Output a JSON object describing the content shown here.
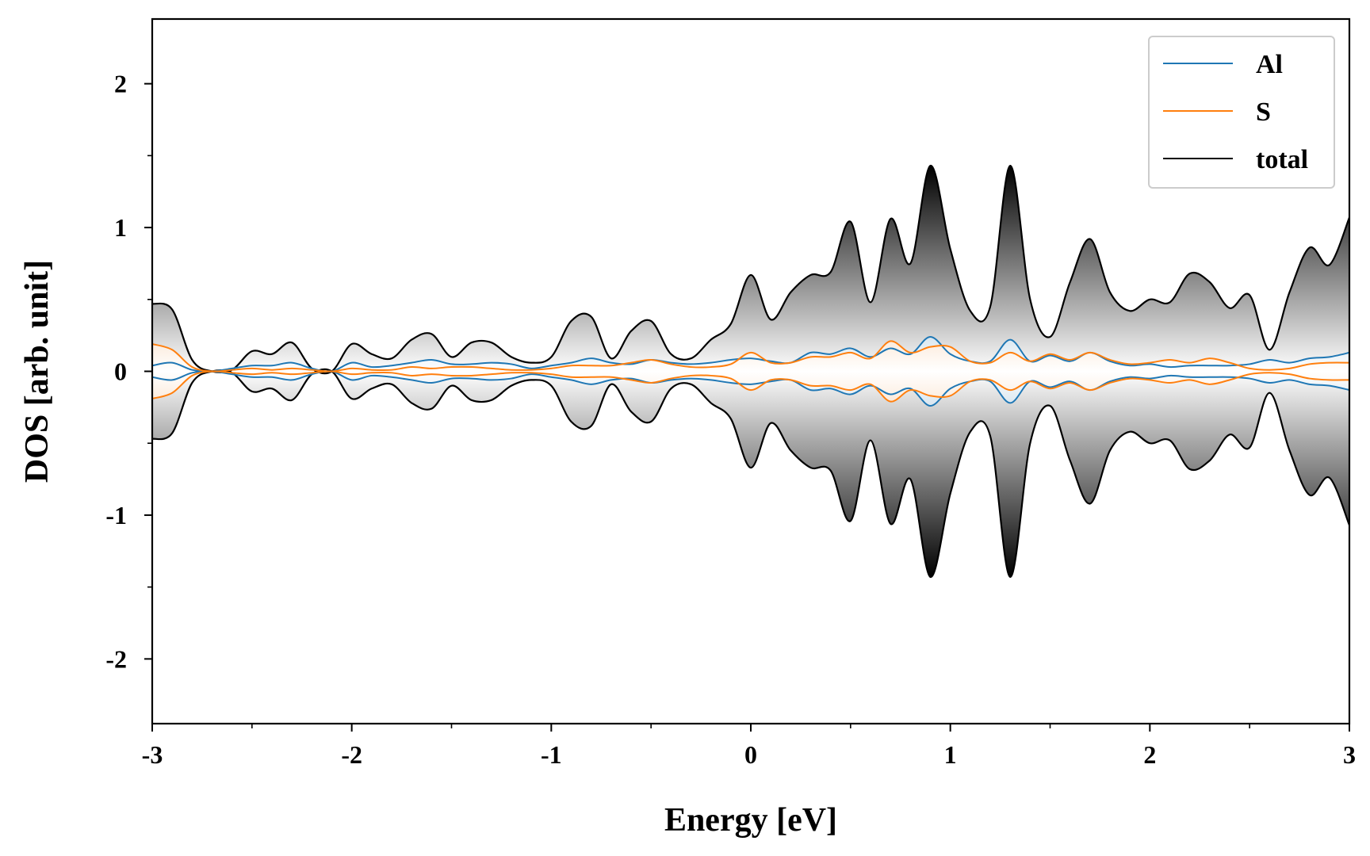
{
  "chart_data": {
    "type": "area",
    "xlabel": "Energy [eV]",
    "ylabel": "DOS [arb. unit]",
    "xlim": [
      -3,
      3
    ],
    "ylim": [
      -2.45,
      2.45
    ],
    "x_ticks": [
      -3,
      -2,
      -1,
      0,
      1,
      2,
      3
    ],
    "x_tick_labels": [
      "-3",
      "-2",
      "-1",
      "0",
      "1",
      "2",
      "3"
    ],
    "y_ticks": [
      -2,
      -1,
      0,
      1,
      2
    ],
    "y_tick_labels": [
      "-2",
      "-1",
      "0",
      "1",
      "2"
    ],
    "grid": false,
    "legend_position": "top-right",
    "symmetric_about_zero": true,
    "series": [
      {
        "name": "Al",
        "color": "#1f77b4",
        "x": [
          -3.0,
          -2.9,
          -2.8,
          -2.7,
          -2.6,
          -2.5,
          -2.4,
          -2.3,
          -2.2,
          -2.1,
          -2.0,
          -1.9,
          -1.8,
          -1.7,
          -1.6,
          -1.5,
          -1.4,
          -1.3,
          -1.2,
          -1.1,
          -1.0,
          -0.9,
          -0.8,
          -0.7,
          -0.6,
          -0.5,
          -0.4,
          -0.3,
          -0.2,
          -0.1,
          0.0,
          0.1,
          0.2,
          0.3,
          0.4,
          0.5,
          0.6,
          0.7,
          0.8,
          0.9,
          1.0,
          1.1,
          1.2,
          1.3,
          1.4,
          1.5,
          1.6,
          1.7,
          1.8,
          1.9,
          2.0,
          2.1,
          2.2,
          2.3,
          2.4,
          2.5,
          2.6,
          2.7,
          2.8,
          2.9,
          3.0
        ],
        "y": [
          0.04,
          0.06,
          0.01,
          0.0,
          0.02,
          0.04,
          0.04,
          0.06,
          0.02,
          0.0,
          0.06,
          0.03,
          0.04,
          0.06,
          0.08,
          0.05,
          0.05,
          0.06,
          0.05,
          0.02,
          0.04,
          0.06,
          0.09,
          0.06,
          0.05,
          0.08,
          0.06,
          0.05,
          0.06,
          0.08,
          0.09,
          0.07,
          0.06,
          0.13,
          0.12,
          0.16,
          0.1,
          0.16,
          0.12,
          0.24,
          0.12,
          0.07,
          0.07,
          0.22,
          0.07,
          0.11,
          0.07,
          0.13,
          0.07,
          0.04,
          0.05,
          0.03,
          0.04,
          0.04,
          0.04,
          0.05,
          0.08,
          0.06,
          0.09,
          0.1,
          0.13
        ]
      },
      {
        "name": "S",
        "color": "#ff7f0e",
        "x": [
          -3.0,
          -2.9,
          -2.8,
          -2.7,
          -2.6,
          -2.5,
          -2.4,
          -2.3,
          -2.2,
          -2.1,
          -2.0,
          -1.9,
          -1.8,
          -1.7,
          -1.6,
          -1.5,
          -1.4,
          -1.3,
          -1.2,
          -1.1,
          -1.0,
          -0.9,
          -0.8,
          -0.7,
          -0.6,
          -0.5,
          -0.4,
          -0.3,
          -0.2,
          -0.1,
          0.0,
          0.1,
          0.2,
          0.3,
          0.4,
          0.5,
          0.6,
          0.7,
          0.8,
          0.9,
          1.0,
          1.1,
          1.2,
          1.3,
          1.4,
          1.5,
          1.6,
          1.7,
          1.8,
          1.9,
          2.0,
          2.1,
          2.2,
          2.3,
          2.4,
          2.5,
          2.6,
          2.7,
          2.8,
          2.9,
          3.0
        ],
        "y": [
          0.19,
          0.15,
          0.03,
          0.0,
          0.01,
          0.02,
          0.01,
          0.02,
          0.01,
          0.0,
          0.02,
          0.01,
          0.01,
          0.03,
          0.02,
          0.03,
          0.03,
          0.02,
          0.01,
          0.01,
          0.02,
          0.04,
          0.04,
          0.04,
          0.06,
          0.08,
          0.05,
          0.03,
          0.03,
          0.05,
          0.13,
          0.06,
          0.06,
          0.1,
          0.1,
          0.13,
          0.09,
          0.21,
          0.13,
          0.17,
          0.17,
          0.07,
          0.06,
          0.13,
          0.07,
          0.12,
          0.08,
          0.13,
          0.08,
          0.05,
          0.06,
          0.08,
          0.06,
          0.09,
          0.06,
          0.02,
          0.01,
          0.02,
          0.05,
          0.06,
          0.06
        ]
      },
      {
        "name": "total",
        "color": "#000000",
        "x": [
          -3.0,
          -2.9,
          -2.8,
          -2.7,
          -2.6,
          -2.5,
          -2.4,
          -2.3,
          -2.2,
          -2.1,
          -2.0,
          -1.9,
          -1.8,
          -1.7,
          -1.6,
          -1.5,
          -1.4,
          -1.3,
          -1.2,
          -1.1,
          -1.0,
          -0.9,
          -0.8,
          -0.7,
          -0.6,
          -0.5,
          -0.4,
          -0.3,
          -0.2,
          -0.1,
          0.0,
          0.1,
          0.2,
          0.3,
          0.4,
          0.5,
          0.6,
          0.7,
          0.8,
          0.9,
          1.0,
          1.1,
          1.2,
          1.3,
          1.4,
          1.5,
          1.6,
          1.7,
          1.8,
          1.9,
          2.0,
          2.1,
          2.2,
          2.3,
          2.4,
          2.5,
          2.6,
          2.7,
          2.8,
          2.9,
          3.0
        ],
        "y": [
          0.47,
          0.43,
          0.08,
          0.0,
          0.01,
          0.14,
          0.12,
          0.2,
          0.02,
          0.0,
          0.19,
          0.12,
          0.09,
          0.22,
          0.26,
          0.1,
          0.2,
          0.2,
          0.1,
          0.06,
          0.1,
          0.35,
          0.38,
          0.09,
          0.28,
          0.35,
          0.12,
          0.09,
          0.22,
          0.33,
          0.67,
          0.36,
          0.55,
          0.67,
          0.69,
          1.04,
          0.48,
          1.06,
          0.75,
          1.43,
          0.85,
          0.42,
          0.45,
          1.43,
          0.5,
          0.24,
          0.62,
          0.92,
          0.55,
          0.42,
          0.5,
          0.48,
          0.68,
          0.62,
          0.44,
          0.53,
          0.15,
          0.55,
          0.86,
          0.74,
          1.07
        ]
      }
    ]
  }
}
